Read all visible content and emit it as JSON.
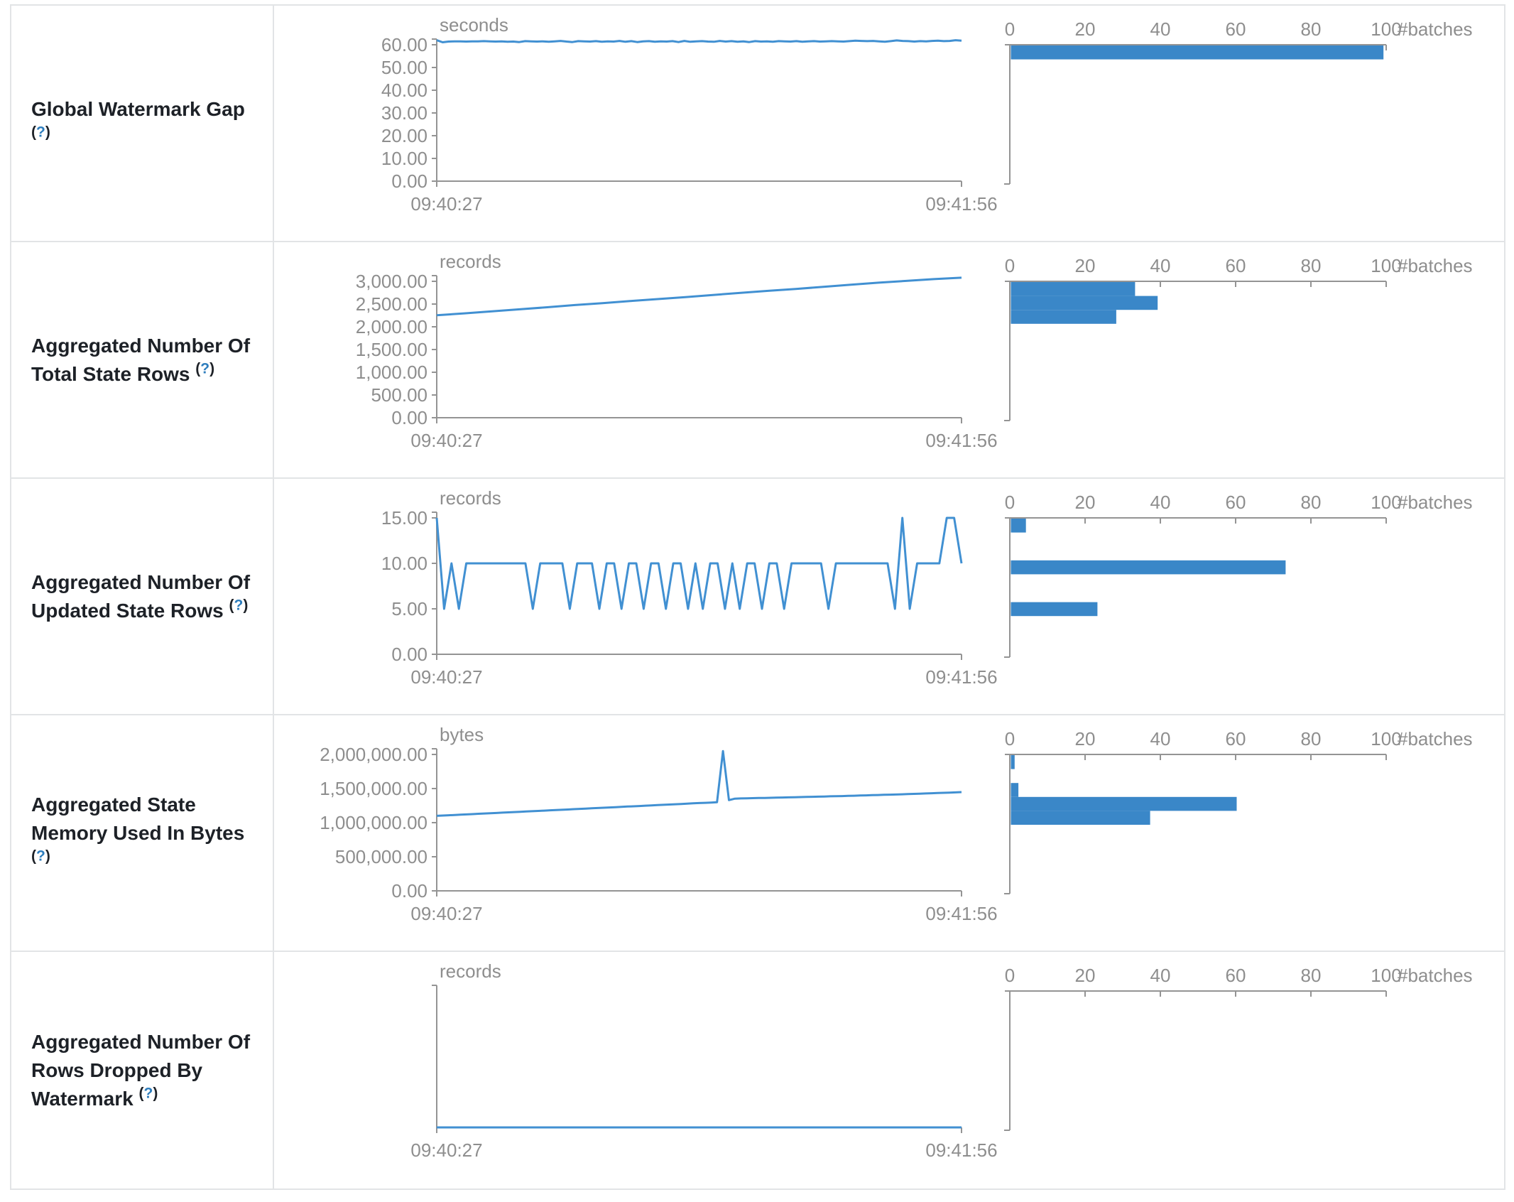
{
  "colors": {
    "accent_blue": "#3a87c8",
    "line_blue": "#4190d2",
    "axis_gray": "#949494",
    "text_gray": "#8e8e8e",
    "label_text": "#1d2127",
    "help_blue": "#2d7dbd",
    "border": "#e2e4e6"
  },
  "help": {
    "open": "(",
    "q": "?",
    "close": ")"
  },
  "histogram_axis": {
    "ticks": [
      "0",
      "20",
      "40",
      "60",
      "80",
      "100"
    ],
    "max": 100,
    "label": "#batches"
  },
  "chart_data": [
    {
      "type": "line",
      "title": "Global Watermark Gap timeline",
      "ylabel": "seconds",
      "x_range": [
        "09:40:27",
        "09:41:56"
      ],
      "ylim": [
        0,
        62.5
      ],
      "values": [
        62.0,
        61.1,
        61.4,
        61.5,
        61.5,
        61.4,
        61.5,
        61.5,
        61.6,
        61.5,
        61.4,
        61.5,
        61.3,
        61.4,
        61.2,
        61.6,
        61.5,
        61.4,
        61.5,
        61.3,
        61.5,
        61.7,
        61.4,
        61.2,
        61.6,
        61.5,
        61.4,
        61.6,
        61.3,
        61.5,
        61.4,
        61.7,
        61.3,
        61.6,
        61.2,
        61.5,
        61.6,
        61.3,
        61.5,
        61.4,
        61.6,
        61.2,
        61.7,
        61.3,
        61.5,
        61.6,
        61.4,
        61.3,
        61.7,
        61.4,
        61.6,
        61.3,
        61.5,
        61.2,
        61.6,
        61.4,
        61.5,
        61.3,
        61.6,
        61.5,
        61.4,
        61.6,
        61.3,
        61.5,
        61.6,
        61.4,
        61.5,
        61.6,
        61.5,
        61.4,
        61.6,
        61.8,
        61.7,
        61.6,
        61.7,
        61.5,
        61.3,
        61.6,
        61.9,
        61.7,
        61.6,
        61.4,
        61.6,
        61.5,
        61.7,
        61.8,
        61.6,
        61.7,
        62.0,
        61.8
      ]
    },
    {
      "type": "bar",
      "title": "Global Watermark Gap histogram",
      "xlabel": "#batches",
      "xlim": [
        0,
        100
      ],
      "bins": [
        "56.25-62.50 s"
      ],
      "values": [
        99
      ]
    },
    {
      "type": "line",
      "title": "Aggregated Number Of Total State Rows timeline",
      "ylabel": "records",
      "x_range": [
        "09:40:27",
        "09:41:56"
      ],
      "ylim": [
        0,
        3125
      ],
      "values": [
        2253,
        2295,
        2340,
        2385,
        2430,
        2478,
        2520,
        2565,
        2610,
        2652,
        2700,
        2745,
        2790,
        2832,
        2880,
        2925,
        2970,
        3010,
        3048,
        3080
      ]
    },
    {
      "type": "bar",
      "title": "Aggregated Number Of Total State Rows histogram",
      "xlabel": "#batches",
      "xlim": [
        0,
        100
      ],
      "bins": [
        "2812-3125",
        "2500-2812",
        "2187-2500"
      ],
      "values": [
        33,
        39,
        28
      ]
    },
    {
      "type": "line",
      "title": "Aggregated Number Of Updated State Rows timeline",
      "ylabel": "records",
      "x_range": [
        "09:40:27",
        "09:41:56"
      ],
      "ylim": [
        0,
        15.625
      ],
      "values": [
        15,
        5,
        10,
        5,
        10,
        10,
        10,
        10,
        10,
        10,
        10,
        10,
        10,
        5,
        10,
        10,
        10,
        10,
        5,
        10,
        10,
        10,
        5,
        10,
        10,
        5,
        10,
        10,
        5,
        10,
        10,
        5,
        10,
        10,
        5,
        10,
        5,
        10,
        10,
        5,
        10,
        5,
        10,
        10,
        5,
        10,
        10,
        5,
        10,
        10,
        10,
        10,
        10,
        5,
        10,
        10,
        10,
        10,
        10,
        10,
        10,
        10,
        5,
        15,
        5,
        10,
        10,
        10,
        10,
        15,
        15,
        10
      ]
    },
    {
      "type": "bar",
      "title": "Aggregated Number Of Updated State Rows histogram",
      "xlabel": "#batches",
      "xlim": [
        0,
        100
      ],
      "bins": [
        "~15",
        "~10",
        "~5"
      ],
      "values": [
        4,
        73,
        23
      ]
    },
    {
      "type": "line",
      "title": "Aggregated State Memory Used In Bytes timeline",
      "ylabel": "bytes",
      "x_range": [
        "09:40:27",
        "09:41:56"
      ],
      "ylim": [
        0,
        2083333
      ],
      "values": [
        1100000,
        1104000,
        1108000,
        1113000,
        1117000,
        1121000,
        1125000,
        1130000,
        1134000,
        1138000,
        1142000,
        1147000,
        1151000,
        1155000,
        1159000,
        1164000,
        1168000,
        1172000,
        1176000,
        1181000,
        1185000,
        1189000,
        1193000,
        1198000,
        1202000,
        1206000,
        1210000,
        1215000,
        1219000,
        1223000,
        1227000,
        1232000,
        1236000,
        1240000,
        1244000,
        1249000,
        1253000,
        1257000,
        1261000,
        1266000,
        1270000,
        1274000,
        1278000,
        1283000,
        1287000,
        1291000,
        1295000,
        1300000,
        2050000,
        1330000,
        1352000,
        1355000,
        1357000,
        1359000,
        1361000,
        1363000,
        1365000,
        1367000,
        1369000,
        1371000,
        1373000,
        1375000,
        1377000,
        1379000,
        1381000,
        1383000,
        1386000,
        1388000,
        1390000,
        1393000,
        1395000,
        1398000,
        1400000,
        1403000,
        1405000,
        1408000,
        1410000,
        1413000,
        1416000,
        1419000,
        1422000,
        1425000,
        1428000,
        1431000,
        1434000,
        1437000,
        1441000,
        1444000,
        1448000
      ]
    },
    {
      "type": "bar",
      "title": "Aggregated State Memory Used In Bytes histogram",
      "xlabel": "#batches",
      "xlim": [
        0,
        100
      ],
      "bins": [
        "1.87M-2.08M",
        "1.46M-1.67M",
        "1.25M-1.46M",
        "1.04M-1.25M"
      ],
      "values": [
        1,
        2,
        60,
        37
      ]
    },
    {
      "type": "line",
      "title": "Aggregated Number Of Rows Dropped By Watermark timeline",
      "ylabel": "records",
      "x_range": [
        "09:40:27",
        "09:41:56"
      ],
      "ylim": [
        0,
        1
      ],
      "values": [
        0,
        0,
        0,
        0,
        0,
        0,
        0,
        0,
        0,
        0
      ]
    },
    {
      "type": "bar",
      "title": "Aggregated Number Of Rows Dropped By Watermark histogram",
      "xlabel": "#batches",
      "xlim": [
        0,
        100
      ],
      "bins": [],
      "values": []
    }
  ],
  "rows": [
    {
      "name": "global-watermark-gap",
      "label_lines": [
        "Global Watermark Gap"
      ],
      "help_own_line": true,
      "timeline": {
        "unit": "seconds",
        "x_start": "09:40:27",
        "x_end": "09:41:56",
        "top_tick": 60,
        "y_ticks": [
          {
            "v": 60,
            "t": "60.00"
          },
          {
            "v": 50,
            "t": "50.00"
          },
          {
            "v": 40,
            "t": "40.00"
          },
          {
            "v": 30,
            "t": "30.00"
          },
          {
            "v": 20,
            "t": "20.00"
          },
          {
            "v": 10,
            "t": "10.00"
          },
          {
            "v": 0,
            "t": "0.00"
          }
        ],
        "chart_ref": 0
      },
      "histogram": {
        "bars": [
          {
            "bin": 0,
            "count": 99
          }
        ]
      }
    },
    {
      "name": "aggregated-total-state-rows",
      "label_lines": [
        "Aggregated Number Of",
        "Total State Rows"
      ],
      "help_own_line": false,
      "timeline": {
        "unit": "records",
        "x_start": "09:40:27",
        "x_end": "09:41:56",
        "top_tick": 3000,
        "y_ticks": [
          {
            "v": 3000,
            "t": "3,000.00"
          },
          {
            "v": 2500,
            "t": "2,500.00"
          },
          {
            "v": 2000,
            "t": "2,000.00"
          },
          {
            "v": 1500,
            "t": "1,500.00"
          },
          {
            "v": 1000,
            "t": "1,000.00"
          },
          {
            "v": 500,
            "t": "500.00"
          },
          {
            "v": 0,
            "t": "0.00"
          }
        ],
        "chart_ref": 2
      },
      "histogram": {
        "bars": [
          {
            "bin": 0,
            "count": 33
          },
          {
            "bin": 1,
            "count": 39
          },
          {
            "bin": 2,
            "count": 28
          }
        ]
      }
    },
    {
      "name": "aggregated-updated-state-rows",
      "label_lines": [
        "Aggregated Number Of",
        "Updated State Rows"
      ],
      "help_own_line": false,
      "timeline": {
        "unit": "records",
        "x_start": "09:40:27",
        "x_end": "09:41:56",
        "top_tick": 15,
        "y_ticks": [
          {
            "v": 15,
            "t": "15.00"
          },
          {
            "v": 10,
            "t": "10.00"
          },
          {
            "v": 5,
            "t": "5.00"
          },
          {
            "v": 0,
            "t": "0.00"
          }
        ],
        "chart_ref": 4
      },
      "histogram": {
        "bars": [
          {
            "bin": 0,
            "count": 4
          },
          {
            "bin": 3,
            "count": 73
          },
          {
            "bin": 6,
            "count": 23
          }
        ]
      }
    },
    {
      "name": "aggregated-state-memory-used",
      "label_lines": [
        "Aggregated State",
        "Memory Used In Bytes"
      ],
      "help_own_line": true,
      "timeline": {
        "unit": "bytes",
        "x_start": "09:40:27",
        "x_end": "09:41:56",
        "top_tick": 2000000,
        "y_ticks": [
          {
            "v": 2000000,
            "t": "2,000,000.00"
          },
          {
            "v": 1500000,
            "t": "1,500,000.00"
          },
          {
            "v": 1000000,
            "t": "1,000,000.00"
          },
          {
            "v": 500000,
            "t": "500,000.00"
          },
          {
            "v": 0,
            "t": "0.00"
          }
        ],
        "chart_ref": 6
      },
      "histogram": {
        "bars": [
          {
            "bin": 0,
            "count": 1
          },
          {
            "bin": 2,
            "count": 2
          },
          {
            "bin": 3,
            "count": 60
          },
          {
            "bin": 4,
            "count": 37
          }
        ]
      }
    },
    {
      "name": "aggregated-rows-dropped-by-watermark",
      "label_lines": [
        "Aggregated Number Of",
        "Rows Dropped By",
        "Watermark"
      ],
      "help_own_line": false,
      "timeline": {
        "unit": "records",
        "x_start": "09:40:27",
        "x_end": "09:41:56",
        "top_tick": 1,
        "y_ticks": [],
        "chart_ref": 8
      },
      "histogram": {
        "bars": []
      }
    }
  ]
}
